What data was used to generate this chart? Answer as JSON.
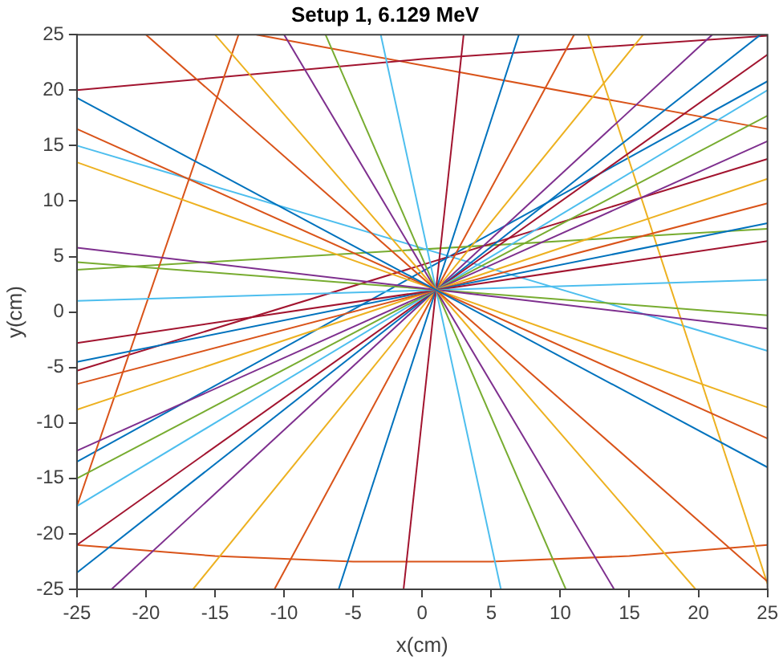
{
  "chart_data": {
    "type": "line",
    "title": "Setup 1, 6.129 MeV",
    "xlabel": "x(cm)",
    "ylabel": "y(cm)",
    "xlim": [
      -25,
      25
    ],
    "ylim": [
      -25,
      25
    ],
    "xticks": [
      -25,
      -20,
      -15,
      -10,
      -5,
      0,
      5,
      10,
      15,
      20,
      25
    ],
    "yticks": [
      -25,
      -20,
      -15,
      -10,
      -5,
      0,
      5,
      10,
      15,
      20,
      25
    ],
    "grid": false,
    "legend": false,
    "marker": "none",
    "line_style": "solid",
    "series": [
      {
        "color": "#0072bd",
        "x": [
          -25,
          25
        ],
        "values": [
          19.3,
          -14
        ]
      },
      {
        "color": "#d95319",
        "x": [
          -25,
          25
        ],
        "values": [
          16.5,
          -11.4
        ]
      },
      {
        "color": "#edb120",
        "x": [
          -25,
          25
        ],
        "values": [
          13.5,
          -8.6
        ]
      },
      {
        "color": "#7e2f8e",
        "x": [
          -25,
          25
        ],
        "values": [
          5.8,
          -1.5
        ]
      },
      {
        "color": "#77ac30",
        "x": [
          -25,
          25
        ],
        "values": [
          4.5,
          -0.3
        ]
      },
      {
        "color": "#4dbeee",
        "x": [
          -25,
          25
        ],
        "values": [
          1,
          2.9
        ]
      },
      {
        "color": "#a2142f",
        "x": [
          -25,
          25
        ],
        "values": [
          -2.8,
          6.4
        ]
      },
      {
        "color": "#0072bd",
        "x": [
          -25,
          25
        ],
        "values": [
          -4.5,
          8
        ]
      },
      {
        "color": "#d95319",
        "x": [
          -25,
          25
        ],
        "values": [
          -6.5,
          9.8
        ]
      },
      {
        "color": "#edb120",
        "x": [
          -25,
          25
        ],
        "values": [
          -8.8,
          12
        ]
      },
      {
        "color": "#7e2f8e",
        "x": [
          -25,
          25
        ],
        "values": [
          -12.5,
          15.4
        ]
      },
      {
        "color": "#77ac30",
        "x": [
          -25,
          25
        ],
        "values": [
          -15,
          17.7
        ]
      },
      {
        "color": "#4dbeee",
        "x": [
          -25,
          25
        ],
        "values": [
          -17.5,
          20
        ]
      },
      {
        "color": "#a2142f",
        "x": [
          -25,
          25
        ],
        "values": [
          -21,
          23.2
        ]
      },
      {
        "color": "#0072bd",
        "x": [
          -25,
          24.5
        ],
        "values": [
          -23.5,
          25
        ]
      },
      {
        "color": "#d95319",
        "x": [
          -20,
          25
        ],
        "values": [
          25,
          -24.3
        ]
      },
      {
        "color": "#edb120",
        "x": [
          -15,
          19.8
        ],
        "values": [
          25,
          -25
        ]
      },
      {
        "color": "#7e2f8e",
        "x": [
          -10,
          13.9
        ],
        "values": [
          25,
          -25
        ]
      },
      {
        "color": "#77ac30",
        "x": [
          -7,
          10.4
        ],
        "values": [
          25,
          -25
        ]
      },
      {
        "color": "#4dbeee",
        "x": [
          -3,
          5.7
        ],
        "values": [
          25,
          -25
        ]
      },
      {
        "color": "#a2142f",
        "x": [
          3,
          -1.35
        ],
        "values": [
          25,
          -25
        ]
      },
      {
        "color": "#0072bd",
        "x": [
          7,
          -6.05
        ],
        "values": [
          25,
          -25
        ]
      },
      {
        "color": "#d95319",
        "x": [
          11,
          -10.7
        ],
        "values": [
          25,
          -25
        ]
      },
      {
        "color": "#edb120",
        "x": [
          16,
          -16.6
        ],
        "values": [
          25,
          -25
        ]
      },
      {
        "color": "#7e2f8e",
        "x": [
          21,
          -22.5
        ],
        "values": [
          25,
          -25
        ]
      },
      {
        "color": "#d95319",
        "x": [
          -25,
          -13.3
        ],
        "values": [
          -17.5,
          25
        ]
      },
      {
        "color": "#edb120",
        "x": [
          12,
          25
        ],
        "values": [
          25,
          -24.5
        ]
      },
      {
        "color": "#d95319",
        "x": [
          -25,
          -15,
          -5,
          5,
          15,
          25
        ],
        "values": [
          -21,
          -22,
          -22.5,
          -22.5,
          -22,
          -21
        ]
      },
      {
        "color": "#a2142f",
        "x": [
          -25,
          0,
          25
        ],
        "values": [
          20,
          22.8,
          24.9
        ]
      },
      {
        "color": "#d95319",
        "x": [
          -12,
          25
        ],
        "values": [
          25,
          16.5
        ]
      },
      {
        "color": "#4dbeee",
        "x": [
          -25,
          25
        ],
        "values": [
          15,
          -3.5
        ]
      },
      {
        "color": "#a2142f",
        "x": [
          -25,
          25
        ],
        "values": [
          -5.3,
          13.8
        ]
      },
      {
        "color": "#77ac30",
        "x": [
          -25,
          25
        ],
        "values": [
          3.8,
          7.5
        ]
      },
      {
        "color": "#0072bd",
        "x": [
          -25,
          25
        ],
        "values": [
          -13.5,
          20.8
        ]
      }
    ]
  }
}
